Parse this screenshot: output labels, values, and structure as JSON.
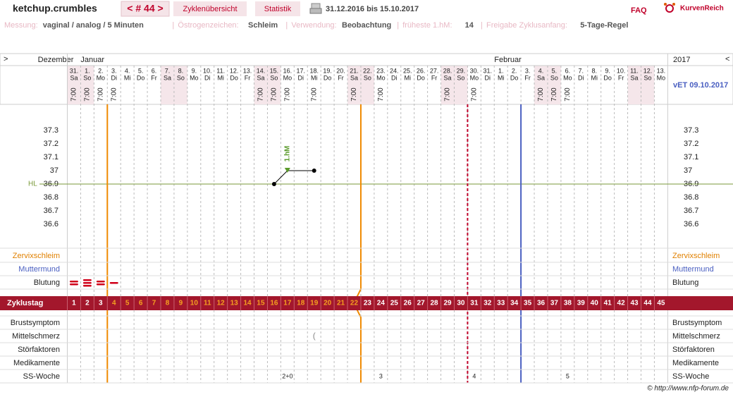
{
  "header": {
    "user": "ketchup.crumbles",
    "cycle": "< # 44 >",
    "tabs": [
      "Zyklenübersicht",
      "Statistik"
    ],
    "period": "31.12.2016 bis 15.10.2017",
    "faq": "FAQ",
    "brand": "KurvenReich"
  },
  "settings": [
    {
      "label": "Messung:",
      "value": "vaginal / analog / 5 Minuten"
    },
    {
      "label": "Östrogenzeichen:",
      "value": "Schleim"
    },
    {
      "label": "Verwendung:",
      "value": "Beobachtung"
    },
    {
      "label": "früheste 1.hM:",
      "value": "14"
    },
    {
      "label": "Freigabe Zyklusanfang:",
      "value": "5-Tage-Regel"
    }
  ],
  "nav": {
    "prev": ">",
    "next": "<"
  },
  "months": [
    "Dezember",
    "Januar",
    "Februar"
  ],
  "year": "2017",
  "due": "vET 09.10.2017",
  "days": [
    {
      "d": "31.",
      "wd": "Sa",
      "t": "7:00"
    },
    {
      "d": "1.",
      "wd": "So",
      "t": "7:00"
    },
    {
      "d": "2.",
      "wd": "Mo",
      "t": "7:00"
    },
    {
      "d": "3.",
      "wd": "Di",
      "t": "7:00"
    },
    {
      "d": "4.",
      "wd": "Mi"
    },
    {
      "d": "5.",
      "wd": "Do"
    },
    {
      "d": "6.",
      "wd": "Fr"
    },
    {
      "d": "7.",
      "wd": "Sa"
    },
    {
      "d": "8.",
      "wd": "So"
    },
    {
      "d": "9.",
      "wd": "Mo"
    },
    {
      "d": "10.",
      "wd": "Di"
    },
    {
      "d": "11.",
      "wd": "Mi"
    },
    {
      "d": "12.",
      "wd": "Do"
    },
    {
      "d": "13.",
      "wd": "Fr"
    },
    {
      "d": "14.",
      "wd": "Sa",
      "t": "7:00"
    },
    {
      "d": "15.",
      "wd": "So",
      "t": "7:00",
      "temp": 36.9
    },
    {
      "d": "16.",
      "wd": "Mo",
      "t": "7:00",
      "temp": 37.0,
      "hm": "1.hM",
      "ss": "2+0"
    },
    {
      "d": "17.",
      "wd": "Di"
    },
    {
      "d": "18.",
      "wd": "Mi",
      "t": "7:00",
      "temp": 37.0,
      "ms": "("
    },
    {
      "d": "19.",
      "wd": "Do"
    },
    {
      "d": "20.",
      "wd": "Fr"
    },
    {
      "d": "21.",
      "wd": "Sa",
      "t": "7:00"
    },
    {
      "d": "22.",
      "wd": "So"
    },
    {
      "d": "23.",
      "wd": "Mo",
      "t": "7:00",
      "ss": "3"
    },
    {
      "d": "24.",
      "wd": "Di"
    },
    {
      "d": "25.",
      "wd": "Mi"
    },
    {
      "d": "26.",
      "wd": "Do"
    },
    {
      "d": "27.",
      "wd": "Fr"
    },
    {
      "d": "28.",
      "wd": "Sa",
      "t": "7:00"
    },
    {
      "d": "29.",
      "wd": "So"
    },
    {
      "d": "30.",
      "wd": "Mo",
      "t": "7:00",
      "ss": "4"
    },
    {
      "d": "31.",
      "wd": "Di"
    },
    {
      "d": "1.",
      "wd": "Mi"
    },
    {
      "d": "2.",
      "wd": "Do"
    },
    {
      "d": "3.",
      "wd": "Fr"
    },
    {
      "d": "4.",
      "wd": "Sa",
      "t": "7:00"
    },
    {
      "d": "5.",
      "wd": "So",
      "t": "7:00"
    },
    {
      "d": "6.",
      "wd": "Mo",
      "t": "7:00",
      "ss": "5"
    },
    {
      "d": "7.",
      "wd": "Di"
    },
    {
      "d": "8.",
      "wd": "Mi"
    },
    {
      "d": "9.",
      "wd": "Do"
    },
    {
      "d": "10.",
      "wd": "Fr"
    },
    {
      "d": "11.",
      "wd": "Sa"
    },
    {
      "d": "12.",
      "wd": "So"
    },
    {
      "d": "13.",
      "wd": "Mo"
    }
  ],
  "temperature": {
    "yticks": [
      37.3,
      37.2,
      37.1,
      {
        "value": 37.0,
        "label": "37"
      },
      36.9,
      36.8,
      36.7,
      36.6
    ],
    "cover": {
      "label": "HL",
      "value": 36.9
    }
  },
  "bleeding": [
    2,
    3,
    2,
    1
  ],
  "rows": {
    "cervix": "Zervixschleim",
    "cervix_pos": "Muttermund",
    "bleeding": "Blutung",
    "cycle_day": "Zyklustag",
    "breast": "Brustsymptom",
    "midpain": "Mittelschmerz",
    "disturb": "Störfaktoren",
    "meds": "Medikamente",
    "ss": "SS-Woche"
  },
  "cycle_days": [
    1,
    2,
    3,
    4,
    5,
    6,
    7,
    8,
    9,
    10,
    11,
    12,
    13,
    14,
    15,
    16,
    17,
    18,
    19,
    20,
    21,
    22,
    23,
    24,
    25,
    26,
    27,
    28,
    29,
    30,
    31,
    32,
    33,
    34,
    35,
    36,
    37,
    38,
    39,
    40,
    41,
    42,
    43,
    44,
    45
  ],
  "footer": "© http://www.nfp-forum.de"
}
